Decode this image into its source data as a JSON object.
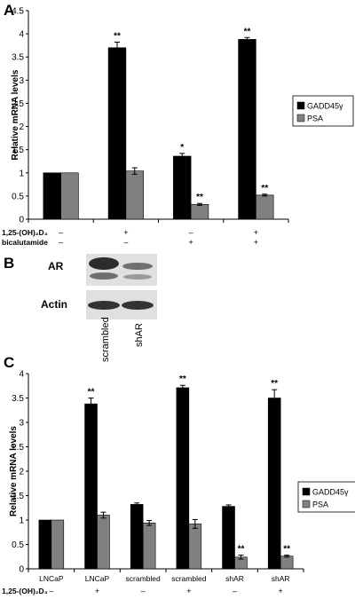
{
  "figure": {
    "panels": [
      {
        "letter": "A"
      },
      {
        "letter": "B"
      },
      {
        "letter": "C"
      }
    ]
  },
  "blot": {
    "rows": [
      "AR",
      "Actin"
    ],
    "lanes": [
      "scrambled",
      "shAR"
    ]
  },
  "chart_data": [
    {
      "type": "bar",
      "panel": "A",
      "ylabel": "Relative mRNA levels",
      "ylim": [
        0,
        4.5
      ],
      "yticks": [
        "0",
        "0.5",
        "1",
        "1.5",
        "2",
        "2.5",
        "3",
        "3.5",
        "4",
        "4.5"
      ],
      "legend_position": "right",
      "conditions": [
        {
          "label": "1,25-(OH)₂D₃",
          "values": [
            "–",
            "+",
            "–",
            "+"
          ]
        },
        {
          "label": "bicalutamide",
          "values": [
            "–",
            "–",
            "+",
            "+"
          ]
        }
      ],
      "series": [
        {
          "name": "GADD45γ",
          "color": "#000000",
          "values": [
            1.0,
            3.7,
            1.36,
            3.88
          ],
          "errors": [
            0,
            0.12,
            0.06,
            0.04
          ],
          "significance": [
            "",
            "**",
            "*",
            "**"
          ]
        },
        {
          "name": "PSA",
          "color": "#808080",
          "values": [
            1.0,
            1.04,
            0.32,
            0.52
          ],
          "errors": [
            0,
            0.07,
            0.02,
            0.02
          ],
          "significance": [
            "",
            "",
            "**",
            "**"
          ]
        }
      ]
    },
    {
      "type": "bar",
      "panel": "C",
      "ylabel": "Relative mRNA levels",
      "ylim": [
        0,
        4
      ],
      "yticks": [
        "0",
        "0.5",
        "1",
        "1.5",
        "2",
        "2.5",
        "3",
        "3.5",
        "4"
      ],
      "legend_position": "right",
      "categories": [
        "LNCaP",
        "LNCaP",
        "scrambled",
        "scrambled",
        "shAR",
        "shAR"
      ],
      "conditions": [
        {
          "label": "1,25-(OH)₂D₃",
          "values": [
            "–",
            "+",
            "–",
            "+",
            "–",
            "+"
          ]
        }
      ],
      "series": [
        {
          "name": "GADD45γ",
          "color": "#000000",
          "values": [
            1.0,
            3.38,
            1.32,
            3.71,
            1.28,
            3.5
          ],
          "errors": [
            0,
            0.12,
            0.03,
            0.05,
            0.03,
            0.17
          ],
          "significance": [
            "",
            "**",
            "",
            "**",
            "",
            "**"
          ]
        },
        {
          "name": "PSA",
          "color": "#808080",
          "values": [
            1.0,
            1.1,
            0.94,
            0.92,
            0.24,
            0.26
          ],
          "errors": [
            0,
            0.06,
            0.05,
            0.09,
            0.04,
            0.02
          ],
          "significance": [
            "",
            "",
            "",
            "",
            "**",
            "**"
          ]
        }
      ]
    }
  ]
}
